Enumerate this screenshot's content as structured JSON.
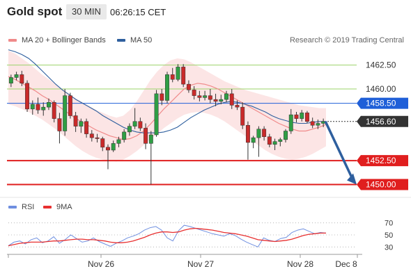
{
  "header": {
    "instrument": "Gold spot",
    "timeframe": "30 MIN",
    "clock": "06:26:15 CET"
  },
  "legend": {
    "items": [
      {
        "label": "MA 20 + Bollinger Bands",
        "color": "#f08a8a"
      },
      {
        "label": "MA 50",
        "color": "#2e5f9e"
      }
    ],
    "source": "Research © 2019 Trading Central"
  },
  "rsi_legend": {
    "items": [
      {
        "label": "RSI",
        "color": "#6f8fe0"
      },
      {
        "label": "9MA",
        "color": "#e83030"
      }
    ]
  },
  "chart_data": [
    {
      "type": "candlestick",
      "ylim": [
        1448.8,
        1464.8
      ],
      "price_ticks": [
        1462.5,
        1460.0
      ],
      "levels": [
        {
          "label": "1462.50",
          "value": 1462.5,
          "kind": "resistance",
          "color": "#9bd36a"
        },
        {
          "label": "1460.00",
          "value": 1460.0,
          "kind": "resistance",
          "color": "#9bd36a"
        },
        {
          "label": "1458.50",
          "value": 1458.5,
          "kind": "pivot",
          "color": "#1f5fd8"
        },
        {
          "label": "1456.60",
          "value": 1456.6,
          "kind": "last",
          "color": "#333333"
        },
        {
          "label": "1452.50",
          "value": 1452.5,
          "kind": "support",
          "color": "#e01e1e"
        },
        {
          "label": "1450.00",
          "value": 1450.0,
          "kind": "support",
          "color": "#e01e1e"
        }
      ],
      "x_labels": [
        "Nov 26",
        "Nov 27",
        "Nov 28",
        "Dec 8"
      ],
      "forecast": {
        "from": 1456.6,
        "to": 1450.0,
        "color": "#2e5f9e"
      },
      "series": [
        {
          "name": "MA 20 + Bollinger Bands",
          "color": "#f08a8a",
          "values": [
            1461.3,
            1461.0,
            1460.6,
            1460.2,
            1459.8,
            1459.3,
            1458.9,
            1458.4,
            1457.9,
            1457.4,
            1456.9,
            1456.5,
            1456.1,
            1455.7,
            1455.4,
            1455.1,
            1454.9,
            1454.7,
            1454.8,
            1455.1,
            1455.6,
            1456.3,
            1457.1,
            1457.9,
            1458.6,
            1459.3,
            1460.0,
            1460.4,
            1460.6,
            1460.5,
            1460.3,
            1460.0,
            1459.6,
            1459.2,
            1458.8,
            1458.4,
            1458.0,
            1457.6,
            1457.2,
            1456.8,
            1456.4,
            1456.1,
            1455.8,
            1455.6,
            1455.6,
            1455.8,
            1456.0,
            1456.3
          ]
        },
        {
          "name": "MA 50",
          "color": "#2e5f9e",
          "values": [
            1464.1,
            1463.9,
            1463.6,
            1463.2,
            1462.6,
            1461.9,
            1461.2,
            1460.5,
            1459.9,
            1459.4,
            1458.9,
            1458.5,
            1458.1,
            1457.7,
            1457.2,
            1456.8,
            1456.4,
            1456.0,
            1455.7,
            1455.5,
            1455.4,
            1455.4,
            1455.4,
            1455.5,
            1455.7,
            1456.0,
            1456.5,
            1457.0,
            1457.4,
            1457.8,
            1458.1,
            1458.4,
            1458.6,
            1458.7,
            1458.6,
            1458.4,
            1458.2,
            1457.9,
            1457.6,
            1457.2,
            1456.9,
            1456.7,
            1456.5,
            1456.4,
            1456.4,
            1456.5,
            1456.6,
            1456.6
          ]
        }
      ],
      "band_upper": [
        1464.0,
        1463.7,
        1463.2,
        1462.7,
        1462.1,
        1461.5,
        1461.0,
        1460.5,
        1460.0,
        1459.5,
        1459.0,
        1458.6,
        1458.2,
        1457.8,
        1457.5,
        1457.2,
        1457.0,
        1457.2,
        1457.8,
        1458.7,
        1459.8,
        1460.9,
        1461.8,
        1462.5,
        1463.0,
        1463.2,
        1463.1,
        1462.8,
        1462.4,
        1462.0,
        1461.6,
        1461.2,
        1460.8,
        1460.5,
        1460.2,
        1459.9,
        1459.7,
        1459.5,
        1459.3,
        1459.1,
        1458.9,
        1458.7,
        1458.5,
        1458.3,
        1458.2,
        1458.1,
        1458.0,
        1458.0
      ],
      "band_lower": [
        1458.4,
        1458.2,
        1457.9,
        1457.6,
        1457.2,
        1456.8,
        1456.3,
        1455.8,
        1455.2,
        1454.6,
        1454.0,
        1453.5,
        1453.1,
        1452.8,
        1452.6,
        1452.5,
        1452.4,
        1452.6,
        1453.0,
        1453.5,
        1454.1,
        1454.7,
        1455.3,
        1455.9,
        1456.4,
        1456.9,
        1457.3,
        1457.5,
        1457.6,
        1457.5,
        1457.3,
        1457.0,
        1456.6,
        1456.1,
        1455.6,
        1455.1,
        1454.6,
        1454.1,
        1453.6,
        1453.2,
        1452.9,
        1452.7,
        1452.6,
        1452.7,
        1452.9,
        1453.2,
        1453.6,
        1454.0
      ],
      "candles": [
        [
          1460.6,
          1461.5,
          1460.2,
          1461.2
        ],
        [
          1461.2,
          1461.8,
          1460.9,
          1461.5
        ],
        [
          1461.5,
          1461.9,
          1460.3,
          1460.6
        ],
        [
          1460.6,
          1460.9,
          1457.6,
          1457.9
        ],
        [
          1457.9,
          1458.8,
          1457.3,
          1458.4
        ],
        [
          1458.4,
          1459.1,
          1457.4,
          1457.8
        ],
        [
          1457.8,
          1458.6,
          1457.2,
          1458.1
        ],
        [
          1458.1,
          1459.0,
          1457.8,
          1458.6
        ],
        [
          1458.6,
          1458.8,
          1456.5,
          1456.9
        ],
        [
          1456.9,
          1457.5,
          1454.3,
          1455.6
        ],
        [
          1455.6,
          1460.0,
          1455.1,
          1459.3
        ],
        [
          1459.3,
          1459.6,
          1456.9,
          1457.2
        ],
        [
          1457.2,
          1457.6,
          1455.5,
          1456.1
        ],
        [
          1456.1,
          1456.9,
          1455.4,
          1456.6
        ],
        [
          1456.6,
          1456.9,
          1454.9,
          1455.3
        ],
        [
          1455.3,
          1455.7,
          1454.5,
          1454.9
        ],
        [
          1454.9,
          1455.3,
          1454.4,
          1454.8
        ],
        [
          1454.8,
          1455.0,
          1453.5,
          1453.9
        ],
        [
          1453.9,
          1454.2,
          1451.6,
          1453.6
        ],
        [
          1453.6,
          1454.6,
          1453.4,
          1454.3
        ],
        [
          1454.3,
          1455.0,
          1453.9,
          1454.7
        ],
        [
          1454.7,
          1455.8,
          1454.4,
          1455.5
        ],
        [
          1455.5,
          1456.4,
          1455.1,
          1456.1
        ],
        [
          1456.1,
          1458.0,
          1455.8,
          1456.6
        ],
        [
          1456.6,
          1457.0,
          1455.6,
          1455.9
        ],
        [
          1455.9,
          1456.4,
          1453.7,
          1454.3
        ],
        [
          1454.3,
          1455.6,
          1450.0,
          1455.2
        ],
        [
          1455.2,
          1459.9,
          1455.0,
          1459.5
        ],
        [
          1459.5,
          1460.0,
          1458.3,
          1458.8
        ],
        [
          1458.8,
          1461.8,
          1458.5,
          1461.5
        ],
        [
          1461.5,
          1462.2,
          1460.7,
          1461.0
        ],
        [
          1461.0,
          1462.6,
          1460.8,
          1462.3
        ],
        [
          1462.3,
          1462.6,
          1460.2,
          1460.5
        ],
        [
          1460.5,
          1460.9,
          1459.6,
          1459.9
        ],
        [
          1459.9,
          1460.3,
          1458.9,
          1459.3
        ],
        [
          1459.3,
          1459.8,
          1458.7,
          1459.1
        ],
        [
          1459.1,
          1459.8,
          1458.8,
          1459.3
        ],
        [
          1459.3,
          1460.0,
          1458.5,
          1458.9
        ],
        [
          1458.9,
          1459.5,
          1458.2,
          1458.7
        ],
        [
          1458.7,
          1459.4,
          1458.4,
          1458.9
        ],
        [
          1458.9,
          1459.8,
          1458.6,
          1459.5
        ],
        [
          1459.5,
          1460.0,
          1457.9,
          1458.3
        ],
        [
          1458.3,
          1458.8,
          1457.8,
          1458.1
        ],
        [
          1458.1,
          1458.6,
          1455.8,
          1456.2
        ],
        [
          1456.2,
          1456.6,
          1452.6,
          1454.4
        ],
        [
          1454.4,
          1455.1,
          1453.8,
          1454.9
        ],
        [
          1454.9,
          1456.1,
          1452.9,
          1455.8
        ],
        [
          1455.8,
          1456.1,
          1454.6,
          1455.0
        ],
        [
          1455.0,
          1455.3,
          1453.9,
          1454.2
        ],
        [
          1454.2,
          1454.8,
          1453.6,
          1454.5
        ],
        [
          1454.5,
          1454.9,
          1454.0,
          1454.7
        ],
        [
          1454.7,
          1455.8,
          1454.4,
          1455.6
        ],
        [
          1455.6,
          1457.9,
          1455.3,
          1457.3
        ],
        [
          1457.3,
          1457.6,
          1456.5,
          1456.9
        ],
        [
          1456.9,
          1457.8,
          1456.6,
          1457.5
        ],
        [
          1457.5,
          1457.7,
          1456.4,
          1456.6
        ],
        [
          1456.6,
          1457.0,
          1455.9,
          1456.2
        ],
        [
          1456.2,
          1456.8,
          1455.8,
          1456.4
        ],
        [
          1456.4,
          1456.9,
          1456.0,
          1456.6
        ]
      ]
    },
    {
      "type": "line",
      "title": "RSI",
      "ylim": [
        20,
        80
      ],
      "y_ticks": [
        70,
        50,
        30
      ],
      "x_labels": [
        "Nov 26",
        "Nov 27",
        "Nov 28",
        "Dec 8"
      ],
      "series": [
        {
          "name": "RSI",
          "color": "#6f8fe0",
          "values": [
            32,
            38,
            40,
            35,
            42,
            45,
            37,
            40,
            47,
            36,
            42,
            50,
            44,
            38,
            40,
            45,
            39,
            35,
            31,
            36,
            40,
            45,
            48,
            52,
            58,
            62,
            64,
            58,
            45,
            40,
            57,
            66,
            64,
            61,
            58,
            55,
            52,
            50,
            48,
            52,
            49,
            43,
            38,
            34,
            30,
            45,
            41,
            39,
            44,
            46,
            54,
            58,
            60,
            56,
            52,
            54,
            53
          ]
        },
        {
          "name": "9MA",
          "color": "#e83030",
          "values": [
            32,
            34,
            36,
            37,
            38,
            38,
            38,
            39,
            40,
            40,
            41,
            42,
            43,
            43,
            42,
            42,
            41,
            40,
            38,
            37,
            37,
            38,
            40,
            43,
            46,
            50,
            53,
            55,
            55,
            54,
            55,
            58,
            60,
            61,
            60,
            59,
            58,
            56,
            54,
            53,
            52,
            50,
            48,
            45,
            42,
            41,
            40,
            39,
            40,
            41,
            43,
            46,
            49,
            51,
            52,
            53,
            53
          ]
        }
      ]
    }
  ]
}
